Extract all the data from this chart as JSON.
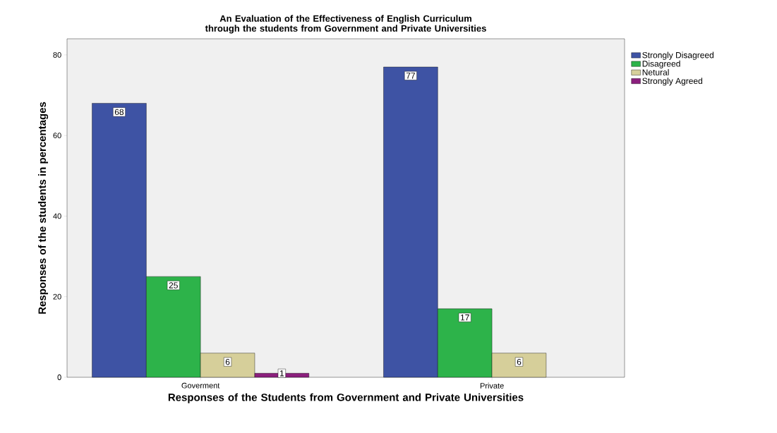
{
  "chart_data": {
    "type": "bar",
    "title": "An Evaluation of the Effectiveness of English Curriculum through the students from Government and Private Universities",
    "xlabel": "Responses of the Students from Government and Private Universities",
    "ylabel": "Responses of the students in percentages",
    "categories": [
      "Goverment",
      "Private"
    ],
    "series": [
      {
        "name": "Strongly Disagreed",
        "color": "#3e53a4",
        "values": [
          68,
          77
        ]
      },
      {
        "name": "Disagreed",
        "color": "#2db34a",
        "values": [
          25,
          17
        ]
      },
      {
        "name": "Netural",
        "color": "#d6cf9a",
        "values": [
          6,
          6
        ]
      },
      {
        "name": "Strongly Agreed",
        "color": "#8b1f7d",
        "values": [
          1,
          null
        ]
      }
    ],
    "ylim": [
      0,
      84
    ],
    "yticks": [
      0,
      20,
      40,
      60,
      80
    ],
    "data_labels": true,
    "legend": "top right"
  }
}
